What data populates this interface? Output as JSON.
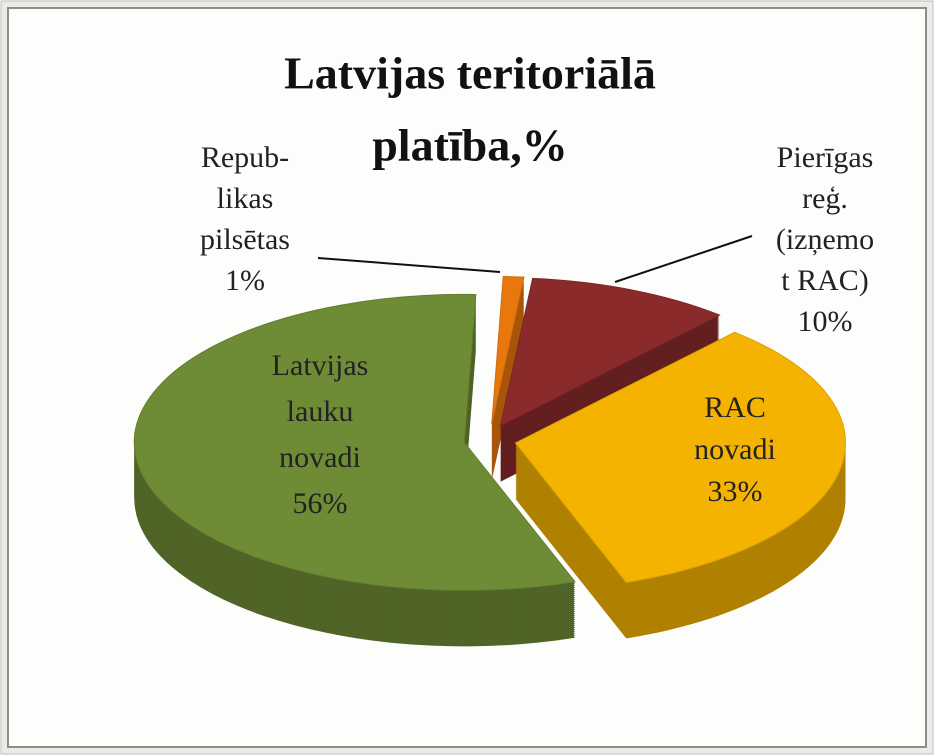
{
  "chart_data": {
    "type": "pie3d",
    "title": [
      "Latvijas teritoriālā",
      "platība,%"
    ],
    "categories": [
      [
        "Repub-",
        "likas",
        "pilsētas"
      ],
      [
        "Pierīgas",
        "reģ.",
        "(izņemo",
        "t RAC)"
      ],
      [
        "RAC",
        "novadi"
      ],
      [
        "Latvijas",
        "lauku",
        "novadi"
      ]
    ],
    "values": [
      1,
      10,
      33,
      56
    ],
    "value_labels": [
      "1%",
      "10%",
      "33%",
      "56%"
    ],
    "colors": [
      "#e8780e",
      "#8a2a2b",
      "#f4b300",
      "#6e8b35"
    ]
  }
}
